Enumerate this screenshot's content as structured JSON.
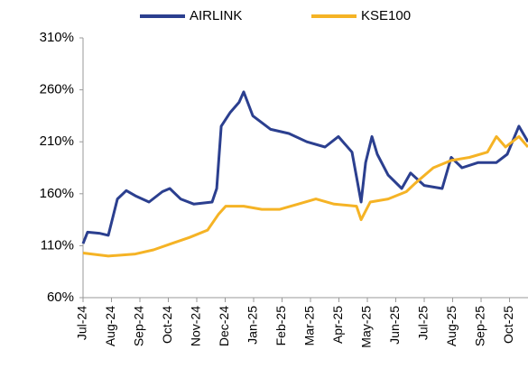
{
  "chart_data": {
    "type": "line",
    "xlim": [
      0,
      15.65
    ],
    "xticks": [
      {
        "value": 0,
        "label": "Jul-24"
      },
      {
        "value": 1,
        "label": "Aug-24"
      },
      {
        "value": 2,
        "label": "Sep-24"
      },
      {
        "value": 3,
        "label": "Oct-24"
      },
      {
        "value": 4,
        "label": "Nov-24"
      },
      {
        "value": 5,
        "label": "Dec-24"
      },
      {
        "value": 6,
        "label": "Jan-25"
      },
      {
        "value": 7,
        "label": "Feb-25"
      },
      {
        "value": 8,
        "label": "Mar-25"
      },
      {
        "value": 9,
        "label": "Apr-25"
      },
      {
        "value": 10,
        "label": "May-25"
      },
      {
        "value": 11,
        "label": "Jun-25"
      },
      {
        "value": 12,
        "label": "Jul-25"
      },
      {
        "value": 13,
        "label": "Aug-25"
      },
      {
        "value": 14,
        "label": "Sep-25"
      },
      {
        "value": 15,
        "label": "Oct-25"
      }
    ],
    "ylim": [
      60,
      310
    ],
    "yticks": [
      {
        "value": 60,
        "label": "60%"
      },
      {
        "value": 110,
        "label": "110%"
      },
      {
        "value": 160,
        "label": "160%"
      },
      {
        "value": 210,
        "label": "210%"
      },
      {
        "value": 260,
        "label": "260%"
      },
      {
        "value": 310,
        "label": "310%"
      }
    ],
    "grid": false,
    "legend": "top",
    "series": [
      {
        "name": "AIRLINK",
        "color": "#2b3f8f",
        "x": [
          0,
          0.16,
          0.57,
          0.89,
          1.21,
          1.52,
          1.84,
          2.32,
          2.79,
          3.05,
          3.43,
          3.9,
          4.54,
          4.7,
          4.86,
          5.17,
          5.49,
          5.65,
          5.97,
          6.6,
          7.24,
          7.87,
          8.51,
          8.98,
          9.46,
          9.78,
          9.94,
          10.16,
          10.35,
          10.73,
          11.21,
          11.52,
          12.0,
          12.63,
          12.95,
          13.33,
          13.9,
          14.54,
          14.92,
          15.33,
          15.65
        ],
        "values": [
          112,
          123,
          122,
          120,
          155,
          163,
          158,
          152,
          162,
          165,
          155,
          150,
          152,
          165,
          225,
          238,
          248,
          258,
          235,
          222,
          218,
          210,
          205,
          215,
          200,
          152,
          190,
          215,
          198,
          178,
          165,
          180,
          168,
          165,
          195,
          185,
          190,
          190,
          198,
          225,
          210
        ]
      },
      {
        "name": "KSE100",
        "color": "#f5b325",
        "x": [
          0,
          0.89,
          1.84,
          2.48,
          3.11,
          3.75,
          4.38,
          4.76,
          5.02,
          5.65,
          6.29,
          6.92,
          7.56,
          8.19,
          8.83,
          9.62,
          9.78,
          10.1,
          10.73,
          11.37,
          11.68,
          12.32,
          12.95,
          13.59,
          14.22,
          14.54,
          14.86,
          15.33,
          15.65
        ],
        "values": [
          103,
          100,
          102,
          106,
          112,
          118,
          125,
          140,
          148,
          148,
          145,
          145,
          150,
          155,
          150,
          148,
          135,
          152,
          155,
          162,
          170,
          185,
          192,
          195,
          200,
          215,
          205,
          215,
          205
        ]
      }
    ]
  }
}
